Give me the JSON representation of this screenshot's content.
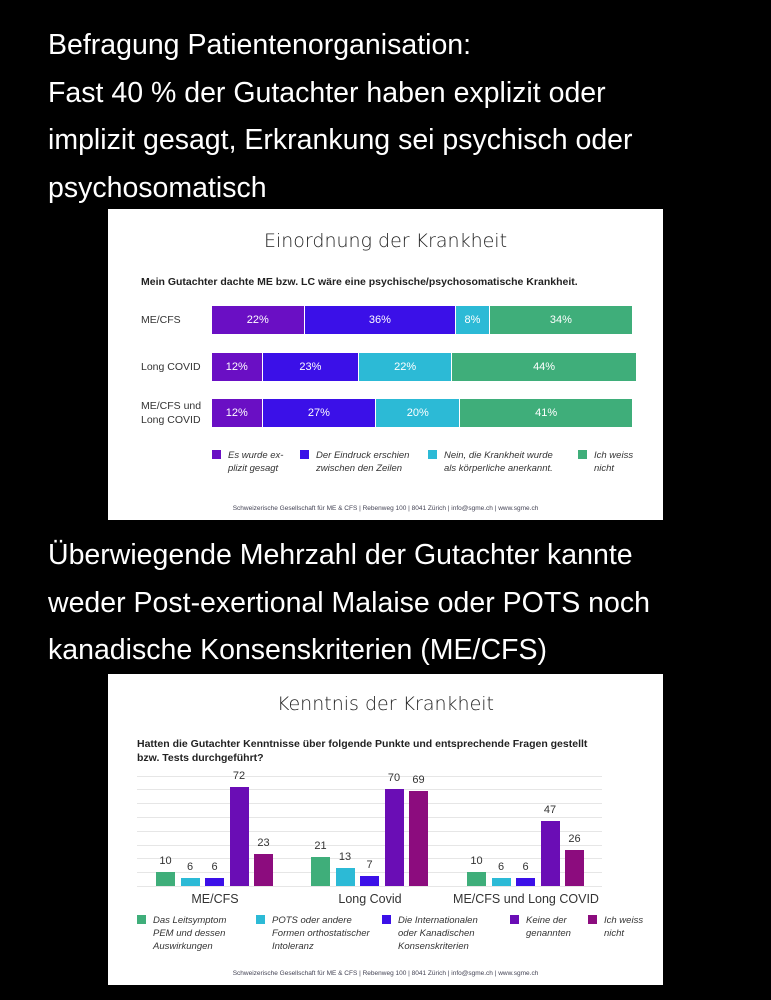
{
  "headline1": [
    "Befragung Patientenorganisation:",
    "Fast 40 % der Gutachter haben explizit oder",
    "implizit gesagt, Erkrankung sei psychisch oder",
    "psychosomatisch"
  ],
  "headline2": [
    "Überwiegende Mehrzahl der Gutachter kannte",
    "weder Post-exertional Malaise oder POTS noch",
    "kanadische Konsenskriterien (ME/CFS)"
  ],
  "chart_data": [
    {
      "type": "bar",
      "orientation": "horizontal-stacked-100",
      "title": "Einordnung der Krankheit",
      "subtitle": "Mein Gutachter dachte ME bzw. LC wäre eine psychische/psychosomatische Krankheit.",
      "categories": [
        "ME/CFS",
        "Long COVID",
        "ME/CFS und Long COVID"
      ],
      "unit": "%",
      "series": [
        {
          "name": "Es wurde explizit gesagt",
          "legend": [
            "Es wurde ex-",
            "plizit gesagt"
          ],
          "color": "#6a0fc4",
          "values": [
            22,
            12,
            12
          ]
        },
        {
          "name": "Der Eindruck erschien zwischen den Zeilen",
          "legend": [
            "Der Eindruck erschien",
            "zwischen den Zeilen"
          ],
          "color": "#3b10e8",
          "values": [
            36,
            23,
            27
          ]
        },
        {
          "name": "Nein, die Krankheit wurde als körperliche anerkannt.",
          "legend": [
            "Nein, die Krankheit wurde",
            "als körperliche anerkannt."
          ],
          "color": "#2cbad6",
          "values": [
            8,
            22,
            20
          ]
        },
        {
          "name": "Ich weiss nicht",
          "legend": [
            "Ich weiss",
            "nicht"
          ],
          "color": "#3fae7a",
          "values": [
            34,
            44,
            41
          ]
        }
      ],
      "category_labels": [
        [
          "ME/CFS"
        ],
        [
          "Long COVID"
        ],
        [
          "ME/CFS und",
          "Long COVID"
        ]
      ],
      "footer": "Schweizerische Gesellschaft für ME & CFS  |  Rebenweg 100  |  8041 Zürich  |  info@sgme.ch  |  www.sgme.ch"
    },
    {
      "type": "bar",
      "title": "Kenntnis der Krankheit",
      "subtitle": [
        "Hatten die Gutachter Kenntnisse über folgende Punkte und entsprechende Fragen gestellt",
        "bzw. Tests durchgeführt?"
      ],
      "categories": [
        "ME/CFS",
        "Long Covid",
        "ME/CFS und Long COVID"
      ],
      "ylim": [
        0,
        80
      ],
      "grid": true,
      "legend_position": "bottom",
      "series": [
        {
          "name": "Das Leitsymptom PEM und dessen Auswirkungen",
          "legend": [
            "Das Leitsymptom",
            "PEM und dessen",
            "Auswirkungen"
          ],
          "color": "#3fae7a",
          "values": [
            10,
            21,
            10
          ]
        },
        {
          "name": "POTS oder andere Formen orthostatischer Intoleranz",
          "legend": [
            "POTS oder andere",
            "Formen orthostatischer",
            "Intoleranz"
          ],
          "color": "#2cbad6",
          "values": [
            6,
            13,
            6
          ]
        },
        {
          "name": "Die Internationalen oder Kanadischen Konsenskriterien",
          "legend": [
            "Die Internationalen",
            "oder Kanadischen",
            "Konsenskriterien"
          ],
          "color": "#3b10e8",
          "values": [
            6,
            7,
            6
          ]
        },
        {
          "name": "Keine der genannten",
          "legend": [
            "Keine der",
            "genannten"
          ],
          "color": "#6a0db5",
          "values": [
            72,
            70,
            47
          ]
        },
        {
          "name": "Ich weiss nicht",
          "legend": [
            "Ich weiss",
            "nicht"
          ],
          "color": "#8c0c7e",
          "values": [
            23,
            69,
            26
          ]
        }
      ],
      "footer": "Schweizerische Gesellschaft für ME & CFS  |  Rebenweg 100  |  8041 Zürich  |  info@sgme.ch  |  www.sgme.ch"
    }
  ]
}
